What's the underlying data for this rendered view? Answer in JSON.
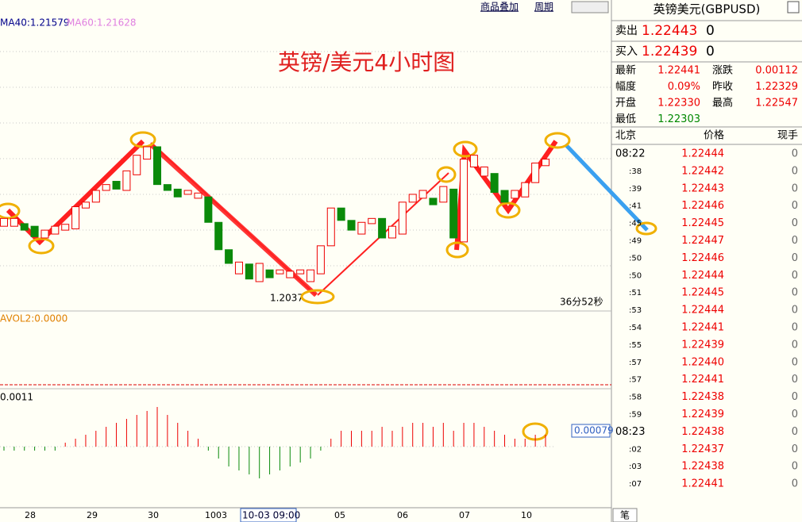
{
  "toolbar": {
    "links": [
      "商品叠加",
      "周期"
    ]
  },
  "chart": {
    "ma_labels": [
      "MA40:1.21579",
      "MA60:1.21628"
    ],
    "title": "英镑/美元4小时图",
    "low_label": "1.2037",
    "countdown": "36分52秒",
    "vol_label": "AVOL2:0.0000",
    "macd_label": "0.0011",
    "macd_value": "0.00079",
    "x_labels": [
      "28",
      "29",
      "30",
      "1003",
      "05",
      "06",
      "07",
      "10"
    ],
    "cursor_label": "10-03 09:00",
    "candles": [
      [
        1.2147,
        1.2159
      ],
      [
        1.2147,
        1.2159
      ],
      [
        1.2151,
        1.2141
      ],
      [
        1.2147,
        1.2131
      ],
      [
        1.2129,
        1.2141
      ],
      [
        1.2135,
        1.2147
      ],
      [
        1.2141,
        1.215
      ],
      [
        1.2143,
        1.2177
      ],
      [
        1.2175,
        1.2184
      ],
      [
        1.2184,
        1.2202
      ],
      [
        1.2202,
        1.2211
      ],
      [
        1.2216,
        1.2204
      ],
      [
        1.2202,
        1.2232
      ],
      [
        1.2226,
        1.2256
      ],
      [
        1.225,
        1.2269
      ],
      [
        1.2269,
        1.2211
      ],
      [
        1.2211,
        1.2202
      ],
      [
        1.2204,
        1.2192
      ],
      [
        1.2196,
        1.2202
      ],
      [
        1.219,
        1.2198
      ],
      [
        1.2192,
        1.2153
      ],
      [
        1.2153,
        1.2111
      ],
      [
        1.2111,
        1.209
      ],
      [
        1.2074,
        1.2092
      ],
      [
        1.2089,
        1.2066
      ],
      [
        1.2062,
        1.209
      ],
      [
        1.208,
        1.2068
      ],
      [
        1.2074,
        1.208
      ],
      [
        1.2068,
        1.2078
      ],
      [
        1.2074,
        1.208
      ],
      [
        1.2062,
        1.208
      ],
      [
        1.2074,
        1.2117
      ],
      [
        1.2117,
        1.2175
      ],
      [
        1.2175,
        1.2156
      ],
      [
        1.2156,
        1.2141
      ],
      [
        1.2135,
        1.2153
      ],
      [
        1.2151,
        1.2159
      ],
      [
        1.2159,
        1.2129
      ],
      [
        1.2129,
        1.2147
      ],
      [
        1.2135,
        1.2184
      ],
      [
        1.2184,
        1.2196
      ],
      [
        1.219,
        1.2202
      ],
      [
        1.219,
        1.218
      ],
      [
        1.2184,
        1.2208
      ],
      [
        1.2204,
        1.2129
      ],
      [
        1.2123,
        1.225
      ],
      [
        1.2238,
        1.2256
      ],
      [
        1.2224,
        1.2238
      ],
      [
        1.2228,
        1.2199
      ],
      [
        1.2202,
        1.2184
      ],
      [
        1.219,
        1.2202
      ],
      [
        1.2192,
        1.2214
      ],
      [
        1.2214,
        1.2244
      ],
      [
        1.224,
        1.225
      ]
    ],
    "macd": [
      -0.0001,
      -0.0001,
      -0.0001,
      -0.0001,
      -0.0001,
      -0.0001,
      0.0001,
      0.0002,
      0.0003,
      0.0004,
      0.0005,
      0.0006,
      0.0007,
      0.0008,
      0.0009,
      0.001,
      0.0008,
      0.0006,
      0.0004,
      0.0002,
      -0.0001,
      -0.0003,
      -0.0005,
      -0.0006,
      -0.0007,
      -0.0008,
      -0.0007,
      -0.0006,
      -0.0005,
      -0.0004,
      -0.0003,
      -0.0001,
      0.0002,
      0.0004,
      0.0004,
      0.0004,
      0.0004,
      0.0005,
      0.0004,
      0.0005,
      0.0006,
      0.0006,
      0.0005,
      0.0006,
      0.0004,
      0.0006,
      0.0006,
      0.0005,
      0.0004,
      0.0003,
      0.0002,
      0.0002,
      0.0003,
      0.0003
    ]
  },
  "quote": {
    "name": "英镑美元(GBPUSD)",
    "sell": [
      "卖出",
      "1.22443",
      "0"
    ],
    "buy": [
      "买入",
      "1.22439",
      "0"
    ],
    "stats": [
      [
        "最新",
        "1.22441",
        "涨跌",
        "0.00112"
      ],
      [
        "幅度",
        "0.09%",
        "昨收",
        "1.22329"
      ],
      [
        "开盘",
        "1.22330",
        "最高",
        "1.22547"
      ],
      [
        "最低",
        "1.22303"
      ]
    ]
  },
  "ticks": {
    "header": [
      "北京",
      "价格",
      "现手"
    ],
    "rows": [
      [
        "08:22",
        "1.22444",
        "0"
      ],
      [
        ":38",
        "1.22442",
        "0"
      ],
      [
        ":39",
        "1.22443",
        "0"
      ],
      [
        ":41",
        "1.22446",
        "0"
      ],
      [
        ":45",
        "1.22445",
        "0"
      ],
      [
        ":49",
        "1.22447",
        "0"
      ],
      [
        ":50",
        "1.22446",
        "0"
      ],
      [
        ":50",
        "1.22444",
        "0"
      ],
      [
        ":51",
        "1.22445",
        "0"
      ],
      [
        ":53",
        "1.22444",
        "0"
      ],
      [
        ":54",
        "1.22441",
        "0"
      ],
      [
        ":55",
        "1.22439",
        "0"
      ],
      [
        ":57",
        "1.22440",
        "0"
      ],
      [
        ":57",
        "1.22441",
        "0"
      ],
      [
        ":58",
        "1.22438",
        "0"
      ],
      [
        ":59",
        "1.22439",
        "0"
      ],
      [
        "08:23",
        "1.22438",
        "0"
      ],
      [
        ":02",
        "1.22437",
        "0"
      ],
      [
        ":03",
        "1.22438",
        "0"
      ],
      [
        ":07",
        "1.22441",
        "0"
      ]
    ]
  },
  "footer_tab": "笔"
}
